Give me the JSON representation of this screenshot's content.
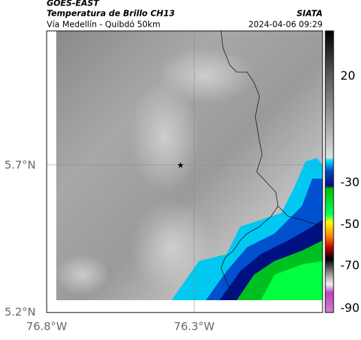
{
  "header": {
    "source": "GOES-EAST",
    "title": "Temperatura de Brillo CH13",
    "subtitle": "Vía Medellín - Quibdó 50km",
    "brand": "SIATA",
    "timestamp": "2024-04-06 09:29"
  },
  "axes": {
    "lat_labels": [
      "5.7°N",
      "5.2°N"
    ],
    "lon_labels": [
      "76.8°W",
      "76.3°W"
    ]
  },
  "colorbar": {
    "tick_labels": [
      "20",
      "-30",
      "-50",
      "-70",
      "-90"
    ]
  }
}
